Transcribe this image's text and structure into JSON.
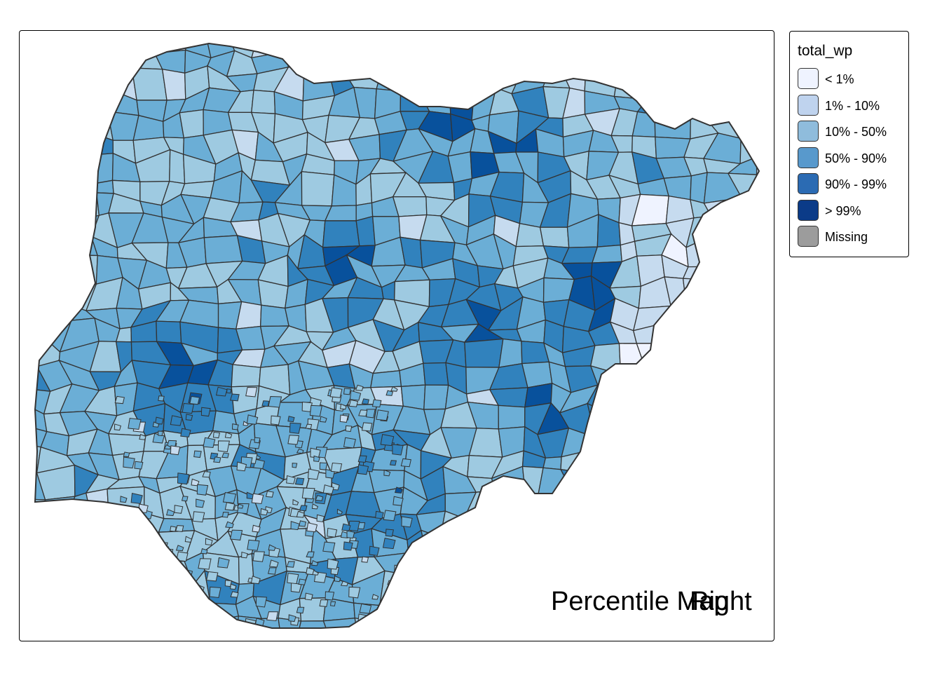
{
  "map": {
    "title_line1": "Percentile Map",
    "title_line2": "Right",
    "fill_colors": [
      "#eff3ff",
      "#c6dbef",
      "#9ecae1",
      "#6baed6",
      "#3182bd",
      "#08519c"
    ],
    "border_color": "#333333"
  },
  "legend": {
    "title": "total_wp",
    "items": [
      {
        "label": "< 1%",
        "color": "#eff3ff"
      },
      {
        "label": "1% - 10%",
        "color": "#bfd3ee"
      },
      {
        "label": "10% - 50%",
        "color": "#8fbcdc"
      },
      {
        "label": "50% - 90%",
        "color": "#5899cc"
      },
      {
        "label": "90% - 99%",
        "color": "#2b6bb3"
      },
      {
        "label": "> 99%",
        "color": "#0b3b88"
      },
      {
        "label": "Missing",
        "color": "#9c9c9c"
      }
    ]
  }
}
